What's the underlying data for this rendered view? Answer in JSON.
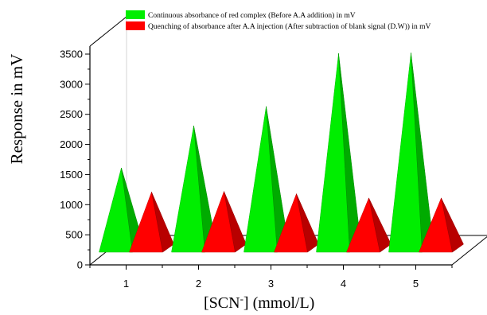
{
  "chart_data": {
    "type": "bar",
    "bar_shape": "pyramid-3d",
    "categories": [
      "1",
      "2",
      "3",
      "4",
      "5"
    ],
    "series": [
      {
        "name": "Continuous absorbance of red complex  (Before A.A addition) in mV",
        "color": "#00ee00",
        "values": [
          1690,
          2390,
          2710,
          3590,
          3600
        ]
      },
      {
        "name": "Quenching of  absorbance after A.A injection (After subtraction of blank signal (D.W)) in mV",
        "color": "#ff0000",
        "values": [
          1290,
          1300,
          1260,
          1190,
          1190
        ]
      }
    ],
    "ylabel": "Response in mV",
    "xlabel_main": "[SCN",
    "xlabel_sup": "-",
    "xlabel_tail": "] (mmol/L)",
    "ylim": [
      0,
      3500
    ],
    "yticks": [
      "0",
      "500",
      "1000",
      "1500",
      "2000",
      "2500",
      "3000",
      "3500"
    ],
    "grid": false,
    "legend_position": "top"
  }
}
